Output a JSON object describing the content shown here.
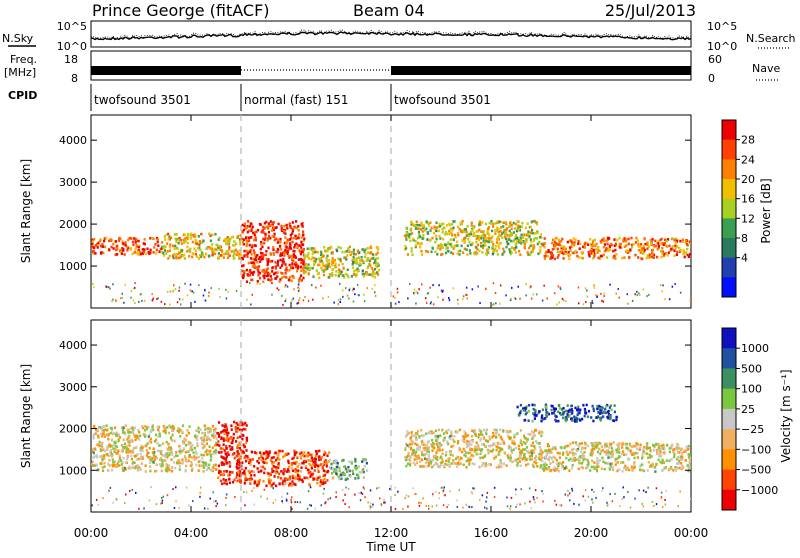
{
  "header": {
    "station": "Prince George (fitACF)",
    "beam": "Beam 04",
    "date": "25/Jul/2013"
  },
  "noise_panel": {
    "left_label": "N.Sky",
    "left_ticks": [
      "10^5",
      "10^0"
    ],
    "right_ticks": [
      "10^5",
      "10^0"
    ],
    "right_label": "N.Search"
  },
  "freq_panel": {
    "left_label_line1": "Freq.",
    "left_label_line2": "[MHz]",
    "left_ticks": [
      "18",
      "8"
    ],
    "right_ticks": [
      "60",
      "0"
    ],
    "right_label": "Nave"
  },
  "cpid_panel": {
    "label": "CPID",
    "modes": [
      {
        "name": "twofsound 3501",
        "start_hour": 0,
        "end_hour": 6
      },
      {
        "name": "normal (fast) 151",
        "start_hour": 6,
        "end_hour": 12
      },
      {
        "name": "twofsound 3501",
        "start_hour": 12,
        "end_hour": 24
      }
    ]
  },
  "chart_data": [
    {
      "type": "heatmap",
      "name": "power",
      "ylabel": "Slant Range [km]",
      "yticks": [
        "4000",
        "3000",
        "2000",
        "1000"
      ],
      "ylim": [
        0,
        4600
      ],
      "xlim": [
        0,
        24
      ],
      "colorbar": {
        "label": "Power [dB]",
        "ticks": [
          "28",
          "24",
          "20",
          "16",
          "12",
          "8",
          "4"
        ],
        "colors": [
          "#0010ff",
          "#2040b0",
          "#2a7a60",
          "#3aa050",
          "#a8d020",
          "#f0c000",
          "#ff8000",
          "#ff4000",
          "#ee0000"
        ]
      },
      "scatter_bands": [
        {
          "start_hour": 0.0,
          "end_hour": 2.8,
          "range_min": 1300,
          "range_max": 1700,
          "level": 0.85
        },
        {
          "start_hour": 2.8,
          "end_hour": 6.0,
          "range_min": 1200,
          "range_max": 1800,
          "level": 0.6
        },
        {
          "start_hour": 6.0,
          "end_hour": 8.5,
          "range_min": 650,
          "range_max": 2100,
          "level": 0.9
        },
        {
          "start_hour": 8.5,
          "end_hour": 11.5,
          "range_min": 750,
          "range_max": 1500,
          "level": 0.55
        },
        {
          "start_hour": 12.5,
          "end_hour": 18.0,
          "range_min": 1300,
          "range_max": 2100,
          "level": 0.55
        },
        {
          "start_hour": 18.0,
          "end_hour": 24.0,
          "range_min": 1200,
          "range_max": 1700,
          "level": 0.75
        }
      ]
    },
    {
      "type": "heatmap",
      "name": "velocity",
      "ylabel": "Slant Range [km]",
      "yticks": [
        "4000",
        "3000",
        "2000",
        "1000"
      ],
      "ylim": [
        0,
        4600
      ],
      "xlim": [
        0,
        24
      ],
      "colorbar": {
        "label": "Velocity [m s⁻¹]",
        "ticks": [
          "1000",
          "500",
          "100",
          "25",
          "−25",
          "−100",
          "−500",
          "−1000"
        ],
        "colors": [
          "#ee0000",
          "#ff4400",
          "#ff9000",
          "#f0b060",
          "#c8c8c8",
          "#7ac840",
          "#3a9060",
          "#2050a0",
          "#1010c0"
        ]
      },
      "scatter_bands": [
        {
          "start_hour": 0.0,
          "end_hour": 5.0,
          "range_min": 1000,
          "range_max": 2100,
          "level": 0.45
        },
        {
          "start_hour": 5.0,
          "end_hour": 6.2,
          "range_min": 700,
          "range_max": 2200,
          "level": 0.05
        },
        {
          "start_hour": 6.2,
          "end_hour": 9.5,
          "range_min": 650,
          "range_max": 1500,
          "level": 0.15
        },
        {
          "start_hour": 9.5,
          "end_hour": 11.0,
          "range_min": 800,
          "range_max": 1300,
          "level": 0.6
        },
        {
          "start_hour": 12.5,
          "end_hour": 18.0,
          "range_min": 1100,
          "range_max": 2000,
          "level": 0.45
        },
        {
          "start_hour": 18.0,
          "end_hour": 24.0,
          "range_min": 1000,
          "range_max": 1700,
          "level": 0.45
        },
        {
          "start_hour": 17.0,
          "end_hour": 21.0,
          "range_min": 2200,
          "range_max": 2600,
          "level": 0.85
        }
      ]
    }
  ],
  "x_axis": {
    "ticks": [
      "00:00",
      "04:00",
      "08:00",
      "12:00",
      "16:00",
      "20:00",
      "00:00"
    ],
    "label": "Time UT"
  }
}
